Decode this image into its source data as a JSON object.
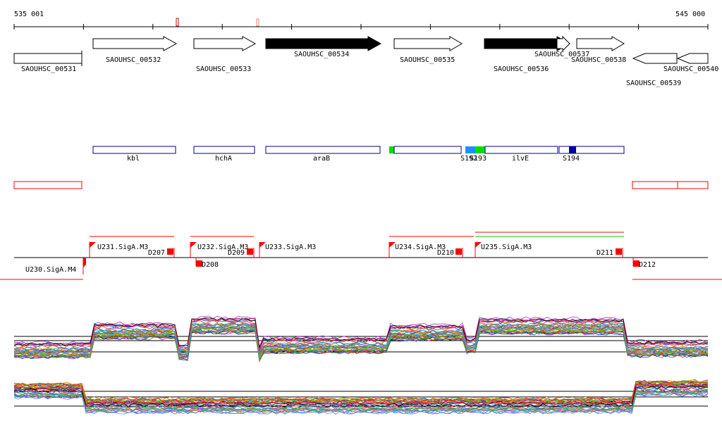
{
  "ruler": {
    "start_label": "535 001",
    "end_label": "545 000"
  },
  "genes": [
    {
      "id": "SAOUHSC_00531",
      "strand": "-",
      "label": "SAOUHSC_00531",
      "filled": false
    },
    {
      "id": "SAOUHSC_00532",
      "strand": "+",
      "label": "SAOUHSC_00532",
      "filled": false
    },
    {
      "id": "SAOUHSC_00533",
      "strand": "+",
      "label": "SAOUHSC_00533",
      "filled": false
    },
    {
      "id": "SAOUHSC_00534",
      "strand": "+",
      "label": "SAOUHSC_00534",
      "filled": true
    },
    {
      "id": "SAOUHSC_00535",
      "strand": "+",
      "label": "SAOUHSC_00535",
      "filled": false
    },
    {
      "id": "SAOUHSC_00536",
      "strand": "+",
      "label": "SAOUHSC_00536",
      "filled": true
    },
    {
      "id": "SAOUHSC_00537",
      "strand": "+",
      "label": "SAOUHSC_00537",
      "filled": false
    },
    {
      "id": "SAOUHSC_00538",
      "strand": "+",
      "label": "SAOUHSC_00538",
      "filled": false
    },
    {
      "id": "SAOUHSC_00539",
      "strand": "-",
      "label": "SAOUHSC_00539",
      "filled": false
    },
    {
      "id": "SAOUHSC_00540",
      "strand": "-",
      "label": "SAOUHSC_00540",
      "filled": false
    }
  ],
  "gene_names": [
    "kbl",
    "hchA",
    "araB",
    "",
    "ilvE"
  ],
  "s_labels": [
    "S192",
    "S193",
    "S194"
  ],
  "promoters": [
    "U230.SigA.M4",
    "U231.SigA.M3",
    "U232.SigA.M3",
    "U233.SigA.M3",
    "U234.SigA.M3",
    "U235.SigA.M3"
  ],
  "terminators": [
    "D207",
    "D208",
    "D209",
    "D210",
    "D211",
    "D212"
  ],
  "colors": {
    "gene_outline": "#000000",
    "feature_outline": "#00008b",
    "red": "#ff0000",
    "green": "#00dd00",
    "light_blue": "#1e90ff",
    "dark_blue": "#000099"
  }
}
